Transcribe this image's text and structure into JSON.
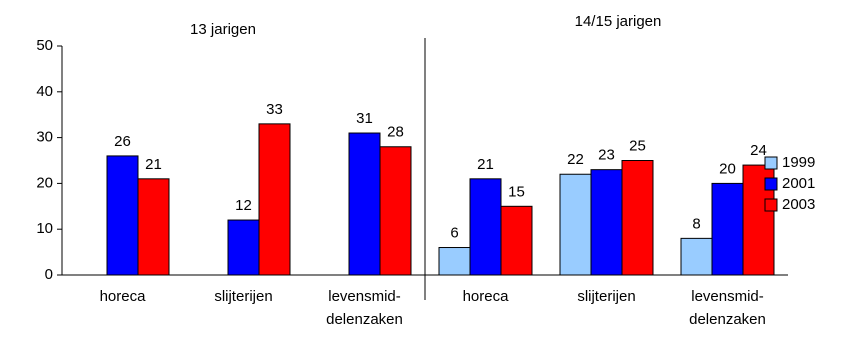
{
  "chart_data": {
    "type": "bar",
    "group_labels": [
      "13 jarigen",
      "14/15 jarigen"
    ],
    "categories": [
      "horeca",
      "slijterijen",
      "levensmid-\ndelenzaken",
      "horeca",
      "slijterijen",
      "levensmid-\ndelenzaken"
    ],
    "series": [
      {
        "name": "1999",
        "color": "#99ccff",
        "values": [
          null,
          null,
          null,
          6,
          22,
          8
        ]
      },
      {
        "name": "2001",
        "color": "#0000ff",
        "values": [
          26,
          12,
          31,
          21,
          23,
          20
        ]
      },
      {
        "name": "2003",
        "color": "#ff0000",
        "values": [
          21,
          33,
          28,
          15,
          25,
          24
        ]
      }
    ],
    "ylim": [
      0,
      50
    ],
    "yticks": [
      0,
      10,
      20,
      30,
      40,
      50
    ],
    "grid": false,
    "legend": "right"
  }
}
